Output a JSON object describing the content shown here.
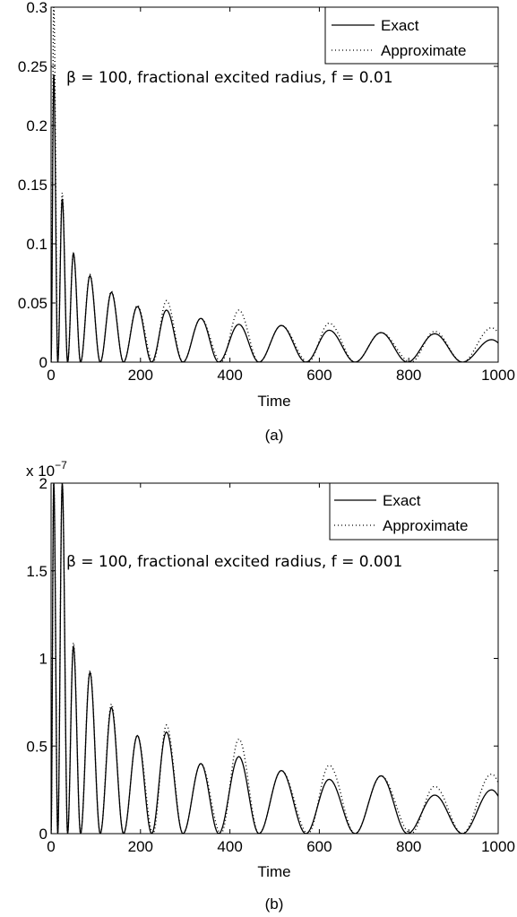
{
  "chart_data": [
    {
      "type": "line",
      "panel_label": "(a)",
      "annotation": "β = 100, fractional excited radius, f = 0.01",
      "xlabel": "Time",
      "ylabel": "",
      "xlim": [
        0,
        1000
      ],
      "ylim": [
        0,
        0.3
      ],
      "xticks": [
        "0",
        "200",
        "400",
        "600",
        "800",
        "1000"
      ],
      "yticks": [
        "0",
        "0.05",
        "0.1",
        "0.15",
        "0.2",
        "0.25",
        "0.3"
      ],
      "exponent_label": "",
      "grid": false,
      "legend_position": "top-right",
      "series": [
        {
          "name": "Exact",
          "style": "solid",
          "peaks": [
            [
              6,
              0.243
            ],
            [
              25,
              0.138
            ],
            [
              50,
              0.092
            ],
            [
              87,
              0.073
            ],
            [
              135,
              0.059
            ],
            [
              193,
              0.047
            ],
            [
              258,
              0.044
            ],
            [
              335,
              0.037
            ],
            [
              420,
              0.032
            ],
            [
              515,
              0.031
            ],
            [
              622,
              0.027
            ],
            [
              738,
              0.025
            ],
            [
              858,
              0.024
            ],
            [
              985,
              0.019
            ]
          ],
          "minima": [
            [
              0,
              0
            ],
            [
              15,
              0
            ],
            [
              37,
              0
            ],
            [
              66,
              0
            ],
            [
              110,
              0
            ],
            [
              162,
              0
            ],
            [
              225,
              0
            ],
            [
              295,
              0
            ],
            [
              375,
              0
            ],
            [
              465,
              0
            ],
            [
              570,
              0
            ],
            [
              680,
              0
            ],
            [
              797,
              0
            ],
            [
              920,
              0
            ]
          ]
        },
        {
          "name": "Approximate",
          "style": "dotted",
          "peaks": [
            [
              6,
              0.3
            ],
            [
              25,
              0.143
            ],
            [
              50,
              0.092
            ],
            [
              87,
              0.074
            ],
            [
              135,
              0.06
            ],
            [
              193,
              0.048
            ],
            [
              258,
              0.052
            ],
            [
              335,
              0.037
            ],
            [
              420,
              0.044
            ],
            [
              515,
              0.031
            ],
            [
              622,
              0.033
            ],
            [
              738,
              0.025
            ],
            [
              858,
              0.026
            ],
            [
              985,
              0.029
            ]
          ],
          "minima": [
            [
              0,
              0
            ],
            [
              15,
              0
            ],
            [
              37,
              0
            ],
            [
              66,
              0
            ],
            [
              110,
              0
            ],
            [
              162,
              0
            ],
            [
              228,
              0
            ],
            [
              295,
              0
            ],
            [
              380,
              0
            ],
            [
              465,
              0
            ],
            [
              575,
              0
            ],
            [
              680,
              0
            ],
            [
              805,
              0
            ],
            [
              920,
              0
            ]
          ]
        }
      ]
    },
    {
      "type": "line",
      "panel_label": "(b)",
      "annotation": "β = 100, fractional excited radius, f = 0.001",
      "xlabel": "Time",
      "ylabel": "",
      "xlim": [
        0,
        1000
      ],
      "ylim": [
        0,
        2
      ],
      "xticks": [
        "0",
        "200",
        "400",
        "600",
        "800",
        "1000"
      ],
      "yticks": [
        "0",
        "0.5",
        "1",
        "1.5",
        "2"
      ],
      "exponent_label": "x 10",
      "exponent_power": "−7",
      "grid": false,
      "legend_position": "top-right",
      "series": [
        {
          "name": "Exact",
          "style": "solid",
          "peaks": [
            [
              6,
              2.0
            ],
            [
              25,
              2.0
            ],
            [
              50,
              1.07
            ],
            [
              87,
              0.92
            ],
            [
              135,
              0.72
            ],
            [
              193,
              0.56
            ],
            [
              258,
              0.58
            ],
            [
              335,
              0.4
            ],
            [
              420,
              0.44
            ],
            [
              515,
              0.36
            ],
            [
              622,
              0.31
            ],
            [
              738,
              0.33
            ],
            [
              858,
              0.22
            ],
            [
              985,
              0.25
            ]
          ],
          "minima": [
            [
              0,
              0
            ],
            [
              15,
              0
            ],
            [
              37,
              0
            ],
            [
              66,
              0
            ],
            [
              110,
              0
            ],
            [
              162,
              0
            ],
            [
              225,
              0
            ],
            [
              295,
              0
            ],
            [
              375,
              0
            ],
            [
              465,
              0
            ],
            [
              570,
              0
            ],
            [
              680,
              0
            ],
            [
              797,
              0
            ],
            [
              920,
              0
            ]
          ]
        },
        {
          "name": "Approximate",
          "style": "dotted",
          "peaks": [
            [
              6,
              2.0
            ],
            [
              25,
              2.0
            ],
            [
              50,
              1.09
            ],
            [
              87,
              0.93
            ],
            [
              135,
              0.74
            ],
            [
              193,
              0.56
            ],
            [
              258,
              0.62
            ],
            [
              335,
              0.4
            ],
            [
              420,
              0.54
            ],
            [
              515,
              0.36
            ],
            [
              622,
              0.39
            ],
            [
              738,
              0.33
            ],
            [
              858,
              0.27
            ],
            [
              985,
              0.34
            ]
          ],
          "minima": [
            [
              0,
              0
            ],
            [
              15,
              0
            ],
            [
              37,
              0
            ],
            [
              66,
              0
            ],
            [
              110,
              0
            ],
            [
              162,
              0
            ],
            [
              228,
              0
            ],
            [
              295,
              0
            ],
            [
              380,
              0
            ],
            [
              465,
              0
            ],
            [
              575,
              0
            ],
            [
              680,
              0
            ],
            [
              805,
              0
            ],
            [
              920,
              0
            ]
          ]
        }
      ]
    }
  ]
}
